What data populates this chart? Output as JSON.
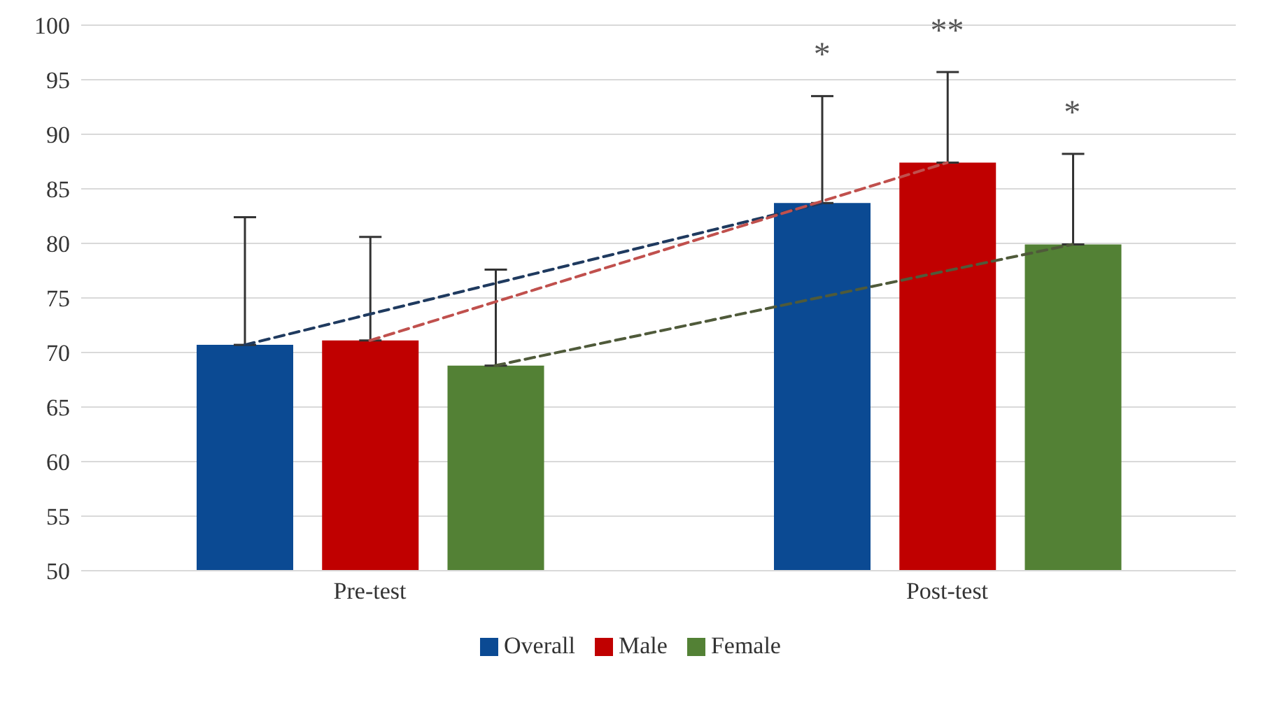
{
  "chart_data": {
    "type": "bar",
    "categories": [
      "Pre-test",
      "Post-test"
    ],
    "series": [
      {
        "name": "Overall",
        "color": "#0b4a93",
        "values": [
          70.7,
          83.7
        ],
        "errors": [
          [
            70.7,
            82.4
          ],
          [
            83.7,
            93.5
          ]
        ]
      },
      {
        "name": "Male",
        "color": "#c00000",
        "values": [
          71.1,
          87.4
        ],
        "errors": [
          [
            71.1,
            80.6
          ],
          [
            87.4,
            95.7
          ]
        ]
      },
      {
        "name": "Female",
        "color": "#538135",
        "values": [
          68.8,
          79.9
        ],
        "errors": [
          [
            68.8,
            77.6
          ],
          [
            79.9,
            88.2
          ]
        ]
      },
      {
        "type": "line",
        "color": "#1f3a5f",
        "values": [
          70.7,
          83.7
        ],
        "line_style": "dashed"
      },
      {
        "type": "line",
        "color": "#c0504d",
        "values": [
          71.1,
          87.4
        ],
        "line_style": "dashed"
      },
      {
        "type": "line",
        "color": "#4f5a3a",
        "values": [
          68.8,
          79.9
        ],
        "line_style": "dashed"
      }
    ],
    "ylim": [
      50,
      100
    ],
    "yticks": [
      50,
      55,
      60,
      65,
      70,
      75,
      80,
      85,
      90,
      95,
      100
    ],
    "grid": "y",
    "legend": "bottom",
    "annotations": [
      "*",
      "**",
      "*"
    ]
  }
}
